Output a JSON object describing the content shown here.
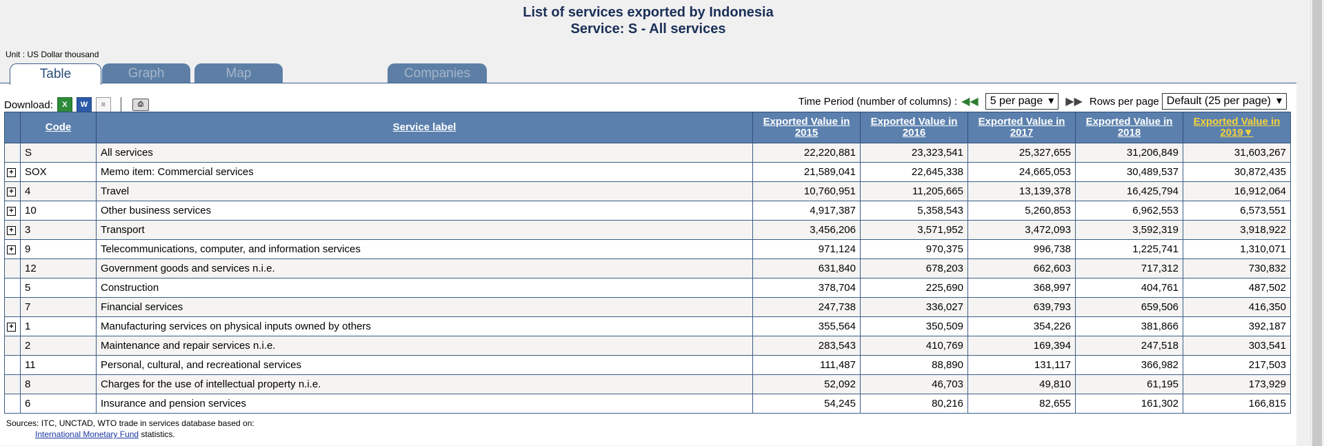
{
  "header": {
    "title": "List of services exported by Indonesia",
    "subtitle": "Service: S - All services"
  },
  "unit": "Unit : US Dollar thousand",
  "tabs": [
    {
      "label": "Table",
      "active": true
    },
    {
      "label": "Graph",
      "active": false
    },
    {
      "label": "Map",
      "active": false
    },
    {
      "label": "Companies",
      "active": false
    }
  ],
  "download": {
    "label": "Download:",
    "icons": [
      "excel-icon",
      "word-icon",
      "text-file-icon",
      "print-icon"
    ]
  },
  "controls": {
    "time_period_label": "Time Period (number of columns) :",
    "time_period_value": "5 per page",
    "rows_label": "Rows per page",
    "rows_value": "Default (25 per page)"
  },
  "table": {
    "headers": {
      "code": "Code",
      "label": "Service label",
      "y2015": "Exported Value in 2015",
      "y2016": "Exported Value in 2016",
      "y2017": "Exported Value in 2017",
      "y2018": "Exported Value in 2018",
      "y2019": "Exported Value in 2019▼"
    },
    "sorted_color": "#f6d33a",
    "header_bg": "#5b80ad",
    "rows": [
      {
        "exp": false,
        "code": "S",
        "label": "All services",
        "v": [
          "22,220,881",
          "23,323,541",
          "25,327,655",
          "31,206,849",
          "31,603,267"
        ]
      },
      {
        "exp": true,
        "code": "SOX",
        "label": "Memo item: Commercial services",
        "v": [
          "21,589,041",
          "22,645,338",
          "24,665,053",
          "30,489,537",
          "30,872,435"
        ]
      },
      {
        "exp": true,
        "code": "4",
        "label": "Travel",
        "v": [
          "10,760,951",
          "11,205,665",
          "13,139,378",
          "16,425,794",
          "16,912,064"
        ]
      },
      {
        "exp": true,
        "code": "10",
        "label": "Other business services",
        "v": [
          "4,917,387",
          "5,358,543",
          "5,260,853",
          "6,962,553",
          "6,573,551"
        ]
      },
      {
        "exp": true,
        "code": "3",
        "label": "Transport",
        "v": [
          "3,456,206",
          "3,571,952",
          "3,472,093",
          "3,592,319",
          "3,918,922"
        ]
      },
      {
        "exp": true,
        "code": "9",
        "label": "Telecommunications, computer, and information services",
        "v": [
          "971,124",
          "970,375",
          "996,738",
          "1,225,741",
          "1,310,071"
        ]
      },
      {
        "exp": false,
        "code": "12",
        "label": "Government goods and services n.i.e.",
        "v": [
          "631,840",
          "678,203",
          "662,603",
          "717,312",
          "730,832"
        ]
      },
      {
        "exp": false,
        "code": "5",
        "label": "Construction",
        "v": [
          "378,704",
          "225,690",
          "368,997",
          "404,761",
          "487,502"
        ]
      },
      {
        "exp": false,
        "code": "7",
        "label": "Financial services",
        "v": [
          "247,738",
          "336,027",
          "639,793",
          "659,506",
          "416,350"
        ]
      },
      {
        "exp": true,
        "code": "1",
        "label": "Manufacturing services on physical inputs owned by others",
        "v": [
          "355,564",
          "350,509",
          "354,226",
          "381,866",
          "392,187"
        ]
      },
      {
        "exp": false,
        "code": "2",
        "label": "Maintenance and repair services n.i.e.",
        "v": [
          "283,543",
          "410,769",
          "169,394",
          "247,518",
          "303,541"
        ]
      },
      {
        "exp": false,
        "code": "11",
        "label": "Personal, cultural, and recreational services",
        "v": [
          "111,487",
          "88,890",
          "131,117",
          "366,982",
          "217,503"
        ]
      },
      {
        "exp": false,
        "code": "8",
        "label": "Charges for the use of intellectual property n.i.e.",
        "v": [
          "52,092",
          "46,703",
          "49,810",
          "61,195",
          "173,929"
        ]
      },
      {
        "exp": false,
        "code": "6",
        "label": "Insurance and pension services",
        "v": [
          "54,245",
          "80,216",
          "82,655",
          "161,302",
          "166,815"
        ]
      }
    ]
  },
  "footer": {
    "sources": "Sources: ITC, UNCTAD, WTO trade in services database based on:",
    "link": "International Monetary Fund",
    "suffix": " statistics."
  }
}
